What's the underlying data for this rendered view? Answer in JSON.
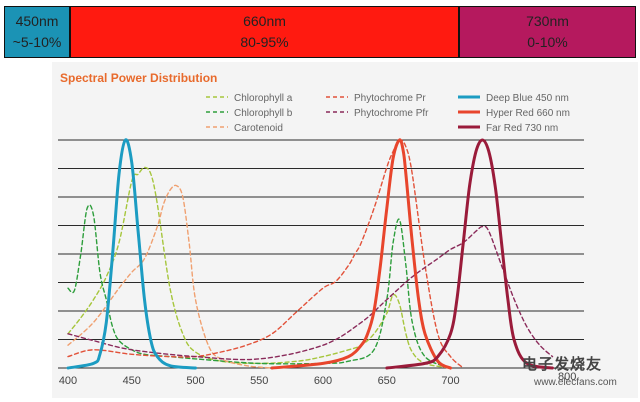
{
  "bands": [
    {
      "label": "450nm",
      "value": "~5-10%",
      "color": "#1b93b5"
    },
    {
      "label": "660nm",
      "value": "80-95%",
      "color": "#ff1a10"
    },
    {
      "label": "730nm",
      "value": "0-10%",
      "color": "#b5195e"
    }
  ],
  "chart_data": {
    "type": "line",
    "title": "Spectral Power Distribution",
    "xlabel": "",
    "ylabel": "",
    "xlim": [
      400,
      800
    ],
    "ylim": [
      0,
      1
    ],
    "x_ticks": [
      400,
      450,
      500,
      550,
      600,
      650,
      700
    ],
    "x_tick_labels": [
      "400",
      "450",
      "500",
      "550",
      "600",
      "650",
      "700"
    ],
    "grid": "horizontal",
    "series": [
      {
        "name": "Chlorophyll a",
        "style": "dashed",
        "color": "#a6c63c",
        "x": [
          400,
          410,
          420,
          430,
          440,
          450,
          455,
          460,
          465,
          470,
          480,
          490,
          500,
          520,
          550,
          580,
          600,
          620,
          630,
          640,
          650,
          655,
          660,
          665,
          670,
          680,
          700
        ],
        "y": [
          0.15,
          0.22,
          0.3,
          0.4,
          0.55,
          0.82,
          0.85,
          0.88,
          0.85,
          0.72,
          0.35,
          0.15,
          0.07,
          0.03,
          0.02,
          0.03,
          0.05,
          0.08,
          0.1,
          0.15,
          0.24,
          0.32,
          0.28,
          0.15,
          0.07,
          0.02,
          0.0
        ]
      },
      {
        "name": "Chlorophyll b",
        "style": "dashed",
        "color": "#2e9e3c",
        "x": [
          400,
          405,
          410,
          415,
          420,
          425,
          430,
          435,
          440,
          450,
          460,
          480,
          500,
          550,
          600,
          620,
          640,
          650,
          655,
          660,
          665,
          670,
          680,
          700
        ],
        "y": [
          0.35,
          0.34,
          0.5,
          0.7,
          0.67,
          0.42,
          0.3,
          0.18,
          0.12,
          0.08,
          0.06,
          0.05,
          0.04,
          0.02,
          0.02,
          0.03,
          0.08,
          0.3,
          0.55,
          0.65,
          0.45,
          0.2,
          0.05,
          0.0
        ]
      },
      {
        "name": "Carotenoid",
        "style": "dashed",
        "color": "#f0a070",
        "x": [
          400,
          420,
          440,
          450,
          460,
          470,
          475,
          480,
          485,
          490,
          495,
          500,
          510,
          520,
          540,
          560
        ],
        "y": [
          0.1,
          0.2,
          0.35,
          0.42,
          0.48,
          0.62,
          0.72,
          0.78,
          0.8,
          0.75,
          0.55,
          0.3,
          0.1,
          0.04,
          0.01,
          0.0
        ]
      },
      {
        "name": "Phytochrome Pr",
        "style": "dashed",
        "color": "#e2523a",
        "x": [
          400,
          420,
          450,
          480,
          500,
          520,
          540,
          560,
          580,
          600,
          610,
          620,
          625,
          630,
          640,
          650,
          655,
          660,
          665,
          670,
          680,
          690,
          700,
          710
        ],
        "y": [
          0.05,
          0.08,
          0.06,
          0.05,
          0.05,
          0.07,
          0.1,
          0.15,
          0.25,
          0.35,
          0.38,
          0.45,
          0.5,
          0.55,
          0.7,
          0.88,
          0.95,
          1.0,
          0.97,
          0.85,
          0.45,
          0.15,
          0.05,
          0.0
        ]
      },
      {
        "name": "Phytochrome Pfr",
        "style": "dashed",
        "color": "#8a2a5a",
        "x": [
          400,
          420,
          450,
          500,
          550,
          600,
          630,
          650,
          670,
          690,
          700,
          710,
          720,
          725,
          730,
          740,
          750,
          760,
          770,
          780
        ],
        "y": [
          0.15,
          0.12,
          0.08,
          0.05,
          0.04,
          0.1,
          0.2,
          0.3,
          0.4,
          0.48,
          0.52,
          0.55,
          0.6,
          0.62,
          0.6,
          0.45,
          0.3,
          0.18,
          0.1,
          0.05
        ]
      },
      {
        "name": "Deep Blue 450 nm",
        "style": "solid",
        "color": "#1c9cc2",
        "x": [
          400,
          420,
          425,
          430,
          435,
          440,
          445,
          450,
          455,
          460,
          465,
          470,
          480,
          500
        ],
        "y": [
          0.0,
          0.02,
          0.06,
          0.2,
          0.5,
          0.85,
          1.0,
          0.9,
          0.6,
          0.3,
          0.12,
          0.05,
          0.01,
          0.0
        ]
      },
      {
        "name": "Hyper Red 660 nm",
        "style": "solid",
        "color": "#e8452c",
        "x": [
          560,
          600,
          620,
          630,
          635,
          640,
          645,
          650,
          655,
          660,
          663,
          665,
          670,
          675,
          680,
          690,
          700
        ],
        "y": [
          0.0,
          0.02,
          0.05,
          0.1,
          0.15,
          0.25,
          0.45,
          0.7,
          0.92,
          1.0,
          0.95,
          0.85,
          0.55,
          0.3,
          0.15,
          0.03,
          0.0
        ]
      },
      {
        "name": "Far Red 730 nm",
        "style": "solid",
        "color": "#9a1b3a",
        "x": [
          650,
          680,
          690,
          700,
          705,
          710,
          715,
          720,
          725,
          730,
          735,
          740,
          745,
          750,
          760,
          780
        ],
        "y": [
          0.0,
          0.02,
          0.05,
          0.15,
          0.3,
          0.55,
          0.8,
          0.95,
          1.0,
          0.95,
          0.8,
          0.55,
          0.3,
          0.12,
          0.02,
          0.0
        ]
      }
    ]
  },
  "extra_tick": "800",
  "watermark": {
    "cn": "电子发烧友",
    "url": "www.elecfans.com"
  }
}
